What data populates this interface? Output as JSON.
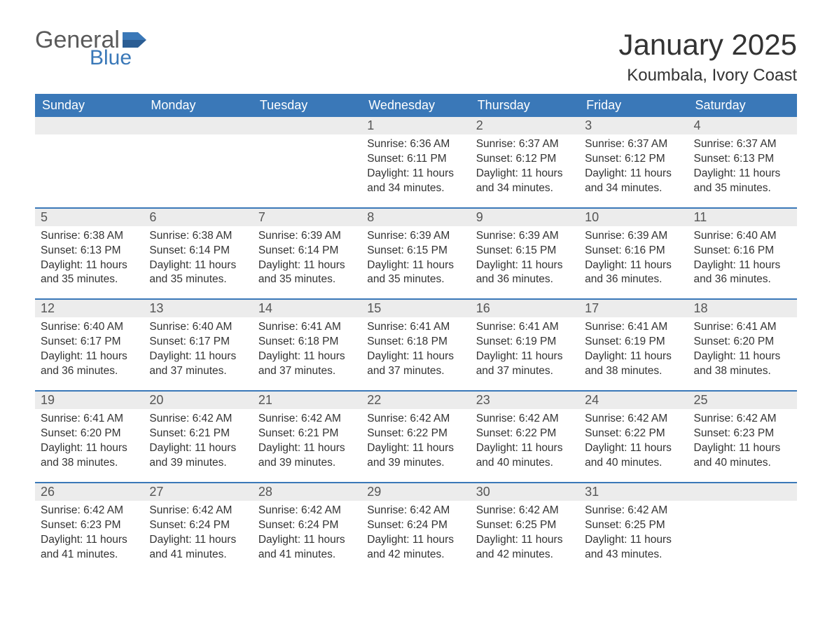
{
  "logo": {
    "general": "General",
    "blue": "Blue"
  },
  "title": "January 2025",
  "location": "Koumbala, Ivory Coast",
  "colors": {
    "header_bg": "#3a78b8",
    "header_text": "#ffffff",
    "daynum_bg": "#ececec",
    "border": "#3a78b8",
    "logo_gray": "#5a5a5a",
    "logo_blue": "#3a78b8",
    "text": "#333333",
    "page_bg": "#ffffff"
  },
  "typography": {
    "title_fontsize": 42,
    "location_fontsize": 24,
    "dow_fontsize": 18,
    "daynum_fontsize": 18,
    "body_fontsize": 15.5
  },
  "dow": [
    "Sunday",
    "Monday",
    "Tuesday",
    "Wednesday",
    "Thursday",
    "Friday",
    "Saturday"
  ],
  "weeks": [
    [
      {
        "n": "",
        "sr": "",
        "ss": "",
        "dl": ""
      },
      {
        "n": "",
        "sr": "",
        "ss": "",
        "dl": ""
      },
      {
        "n": "",
        "sr": "",
        "ss": "",
        "dl": ""
      },
      {
        "n": "1",
        "sr": "Sunrise: 6:36 AM",
        "ss": "Sunset: 6:11 PM",
        "dl": "Daylight: 11 hours and 34 minutes."
      },
      {
        "n": "2",
        "sr": "Sunrise: 6:37 AM",
        "ss": "Sunset: 6:12 PM",
        "dl": "Daylight: 11 hours and 34 minutes."
      },
      {
        "n": "3",
        "sr": "Sunrise: 6:37 AM",
        "ss": "Sunset: 6:12 PM",
        "dl": "Daylight: 11 hours and 34 minutes."
      },
      {
        "n": "4",
        "sr": "Sunrise: 6:37 AM",
        "ss": "Sunset: 6:13 PM",
        "dl": "Daylight: 11 hours and 35 minutes."
      }
    ],
    [
      {
        "n": "5",
        "sr": "Sunrise: 6:38 AM",
        "ss": "Sunset: 6:13 PM",
        "dl": "Daylight: 11 hours and 35 minutes."
      },
      {
        "n": "6",
        "sr": "Sunrise: 6:38 AM",
        "ss": "Sunset: 6:14 PM",
        "dl": "Daylight: 11 hours and 35 minutes."
      },
      {
        "n": "7",
        "sr": "Sunrise: 6:39 AM",
        "ss": "Sunset: 6:14 PM",
        "dl": "Daylight: 11 hours and 35 minutes."
      },
      {
        "n": "8",
        "sr": "Sunrise: 6:39 AM",
        "ss": "Sunset: 6:15 PM",
        "dl": "Daylight: 11 hours and 35 minutes."
      },
      {
        "n": "9",
        "sr": "Sunrise: 6:39 AM",
        "ss": "Sunset: 6:15 PM",
        "dl": "Daylight: 11 hours and 36 minutes."
      },
      {
        "n": "10",
        "sr": "Sunrise: 6:39 AM",
        "ss": "Sunset: 6:16 PM",
        "dl": "Daylight: 11 hours and 36 minutes."
      },
      {
        "n": "11",
        "sr": "Sunrise: 6:40 AM",
        "ss": "Sunset: 6:16 PM",
        "dl": "Daylight: 11 hours and 36 minutes."
      }
    ],
    [
      {
        "n": "12",
        "sr": "Sunrise: 6:40 AM",
        "ss": "Sunset: 6:17 PM",
        "dl": "Daylight: 11 hours and 36 minutes."
      },
      {
        "n": "13",
        "sr": "Sunrise: 6:40 AM",
        "ss": "Sunset: 6:17 PM",
        "dl": "Daylight: 11 hours and 37 minutes."
      },
      {
        "n": "14",
        "sr": "Sunrise: 6:41 AM",
        "ss": "Sunset: 6:18 PM",
        "dl": "Daylight: 11 hours and 37 minutes."
      },
      {
        "n": "15",
        "sr": "Sunrise: 6:41 AM",
        "ss": "Sunset: 6:18 PM",
        "dl": "Daylight: 11 hours and 37 minutes."
      },
      {
        "n": "16",
        "sr": "Sunrise: 6:41 AM",
        "ss": "Sunset: 6:19 PM",
        "dl": "Daylight: 11 hours and 37 minutes."
      },
      {
        "n": "17",
        "sr": "Sunrise: 6:41 AM",
        "ss": "Sunset: 6:19 PM",
        "dl": "Daylight: 11 hours and 38 minutes."
      },
      {
        "n": "18",
        "sr": "Sunrise: 6:41 AM",
        "ss": "Sunset: 6:20 PM",
        "dl": "Daylight: 11 hours and 38 minutes."
      }
    ],
    [
      {
        "n": "19",
        "sr": "Sunrise: 6:41 AM",
        "ss": "Sunset: 6:20 PM",
        "dl": "Daylight: 11 hours and 38 minutes."
      },
      {
        "n": "20",
        "sr": "Sunrise: 6:42 AM",
        "ss": "Sunset: 6:21 PM",
        "dl": "Daylight: 11 hours and 39 minutes."
      },
      {
        "n": "21",
        "sr": "Sunrise: 6:42 AM",
        "ss": "Sunset: 6:21 PM",
        "dl": "Daylight: 11 hours and 39 minutes."
      },
      {
        "n": "22",
        "sr": "Sunrise: 6:42 AM",
        "ss": "Sunset: 6:22 PM",
        "dl": "Daylight: 11 hours and 39 minutes."
      },
      {
        "n": "23",
        "sr": "Sunrise: 6:42 AM",
        "ss": "Sunset: 6:22 PM",
        "dl": "Daylight: 11 hours and 40 minutes."
      },
      {
        "n": "24",
        "sr": "Sunrise: 6:42 AM",
        "ss": "Sunset: 6:22 PM",
        "dl": "Daylight: 11 hours and 40 minutes."
      },
      {
        "n": "25",
        "sr": "Sunrise: 6:42 AM",
        "ss": "Sunset: 6:23 PM",
        "dl": "Daylight: 11 hours and 40 minutes."
      }
    ],
    [
      {
        "n": "26",
        "sr": "Sunrise: 6:42 AM",
        "ss": "Sunset: 6:23 PM",
        "dl": "Daylight: 11 hours and 41 minutes."
      },
      {
        "n": "27",
        "sr": "Sunrise: 6:42 AM",
        "ss": "Sunset: 6:24 PM",
        "dl": "Daylight: 11 hours and 41 minutes."
      },
      {
        "n": "28",
        "sr": "Sunrise: 6:42 AM",
        "ss": "Sunset: 6:24 PM",
        "dl": "Daylight: 11 hours and 41 minutes."
      },
      {
        "n": "29",
        "sr": "Sunrise: 6:42 AM",
        "ss": "Sunset: 6:24 PM",
        "dl": "Daylight: 11 hours and 42 minutes."
      },
      {
        "n": "30",
        "sr": "Sunrise: 6:42 AM",
        "ss": "Sunset: 6:25 PM",
        "dl": "Daylight: 11 hours and 42 minutes."
      },
      {
        "n": "31",
        "sr": "Sunrise: 6:42 AM",
        "ss": "Sunset: 6:25 PM",
        "dl": "Daylight: 11 hours and 43 minutes."
      },
      {
        "n": "",
        "sr": "",
        "ss": "",
        "dl": ""
      }
    ]
  ]
}
